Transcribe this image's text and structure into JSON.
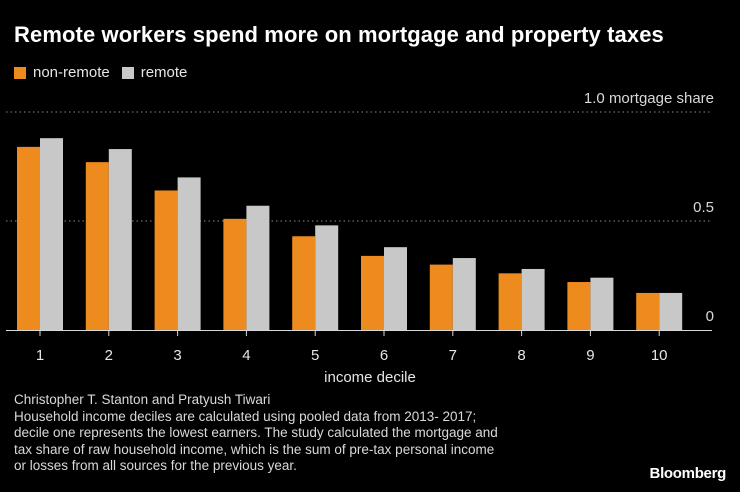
{
  "chart_data": {
    "type": "bar",
    "title": "Remote workers spend more on mortgage and property taxes",
    "xlabel": "income decile",
    "ylabel": "mortgage share",
    "categories": [
      "1",
      "2",
      "3",
      "4",
      "5",
      "6",
      "7",
      "8",
      "9",
      "10"
    ],
    "series": [
      {
        "name": "non-remote",
        "color": "#ee8b1e",
        "values": [
          0.84,
          0.77,
          0.64,
          0.51,
          0.43,
          0.34,
          0.3,
          0.26,
          0.22,
          0.17
        ]
      },
      {
        "name": "remote",
        "color": "#c8c8c8",
        "values": [
          0.88,
          0.83,
          0.7,
          0.57,
          0.48,
          0.38,
          0.33,
          0.28,
          0.24,
          0.17
        ]
      }
    ],
    "ylim": [
      0,
      1.0
    ],
    "yticks": [
      {
        "value": 0,
        "label": "0"
      },
      {
        "value": 0.5,
        "label": "0.5"
      },
      {
        "value": 1.0,
        "label": "1.0 mortgage share"
      }
    ],
    "legend_position": "top-left",
    "grid": true
  },
  "footer": {
    "lines": [
      "Christopher T. Stanton and Pratyush Tiwari",
      "Household income deciles are calculated using pooled data from 2013- 2017;",
      "decile one represents the lowest earners. The study calculated the mortgage and",
      "tax share of raw household income, which is the sum of  pre-tax personal income",
      "or losses from all sources for the previous year."
    ]
  },
  "brand": "Bloomberg",
  "colors": {
    "background": "#000000",
    "non_remote": "#ee8b1e",
    "remote": "#c8c8c8",
    "text": "#ffffff",
    "grid": "#8a8a8a"
  }
}
